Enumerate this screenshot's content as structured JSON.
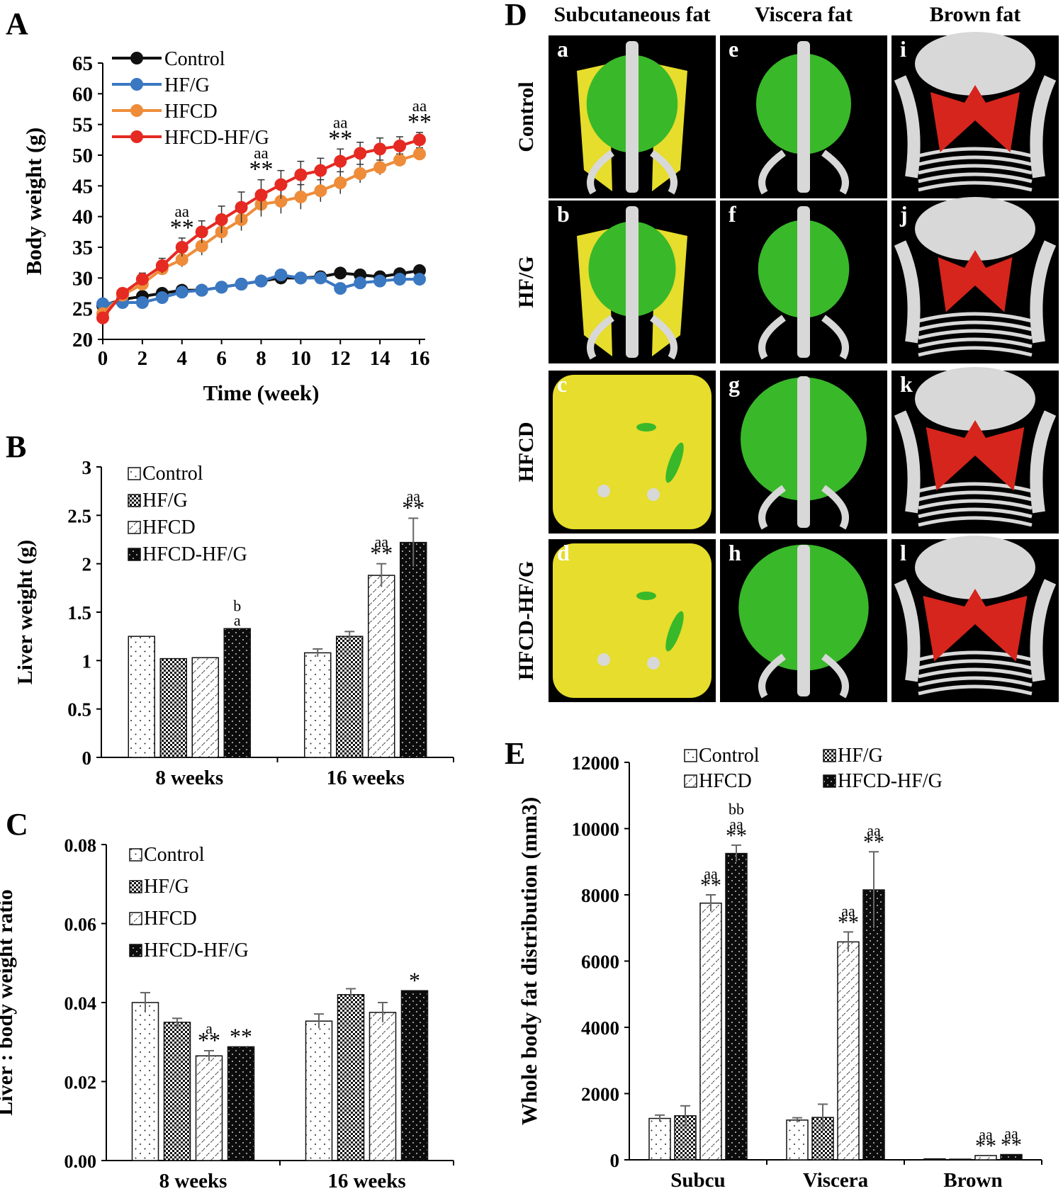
{
  "panels": {
    "A": "A",
    "B": "B",
    "C": "C",
    "D": "D",
    "E": "E"
  },
  "colors": {
    "control": "#111111",
    "hfg": "#3a78c2",
    "hfcd": "#ee8c3a",
    "hfcdhfg": "#e52a22",
    "subcutaneous": "#e6dd2c",
    "viscera": "#39b82a",
    "brown": "#d6251c",
    "bone": "#d8d8d8"
  },
  "chart_data": [
    {
      "id": "A",
      "type": "line",
      "title": "",
      "xlabel": "Time (week)",
      "ylabel": "Body weight (g)",
      "xlim": [
        0,
        16
      ],
      "ylim": [
        20,
        65
      ],
      "xticks": [
        "0",
        "2",
        "4",
        "6",
        "8",
        "10",
        "12",
        "14",
        "16"
      ],
      "yticks": [
        "20",
        "25",
        "30",
        "35",
        "40",
        "45",
        "50",
        "55",
        "60",
        "65"
      ],
      "x": [
        0,
        1,
        2,
        3,
        4,
        5,
        6,
        7,
        8,
        9,
        10,
        11,
        12,
        13,
        14,
        15,
        16
      ],
      "series": [
        {
          "name": "Control",
          "color": "#111111",
          "values": [
            25.5,
            26.5,
            27,
            27.5,
            28,
            28,
            28.5,
            29,
            29.5,
            30,
            30,
            30.2,
            30.8,
            30.5,
            30.2,
            30.7,
            31.2
          ],
          "errors": [
            0.6,
            0.6,
            0.6,
            0.6,
            0.6,
            0.6,
            0.6,
            0.6,
            0.6,
            0.6,
            0.6,
            0.6,
            0.6,
            0.6,
            0.6,
            0.6,
            0.6
          ]
        },
        {
          "name": "HF/G",
          "color": "#3a78c2",
          "values": [
            25.8,
            26,
            26,
            26.8,
            27.7,
            28,
            28.5,
            29,
            29.5,
            30.5,
            30,
            30,
            28.3,
            29.2,
            29.5,
            29.8,
            29.8
          ],
          "errors": [
            0.6,
            0.6,
            0.6,
            0.6,
            0.6,
            0.6,
            0.6,
            0.6,
            0.6,
            0.6,
            0.6,
            0.6,
            0.6,
            0.6,
            0.6,
            0.6,
            0.6
          ]
        },
        {
          "name": "HFCD",
          "color": "#ee8c3a",
          "values": [
            24.2,
            27.2,
            29,
            31.5,
            33,
            35.2,
            37.5,
            39.5,
            42,
            42.5,
            43.2,
            44.2,
            45.5,
            47,
            48,
            49.2,
            50.2
          ],
          "errors": [
            0.8,
            0.8,
            1,
            1,
            1.2,
            1.5,
            1.8,
            1.8,
            2,
            2,
            2,
            1.8,
            1.8,
            1.5,
            1.2,
            1,
            1
          ]
        },
        {
          "name": "HFCD-HF/G",
          "color": "#e52a22",
          "values": [
            23.5,
            27.5,
            29.8,
            32,
            35,
            37.5,
            39.5,
            41.5,
            43.5,
            45.2,
            46.8,
            47.5,
            49,
            50.3,
            51,
            51.5,
            52.5
          ],
          "errors": [
            0.8,
            0.8,
            1,
            1.2,
            1.5,
            1.8,
            2.2,
            2.5,
            2.5,
            2.3,
            2.2,
            2,
            2,
            1.8,
            1.8,
            1.5,
            1.2
          ]
        }
      ],
      "annotations": [
        {
          "x": 4,
          "line1": "aa",
          "line2": "**"
        },
        {
          "x": 8,
          "line1": "aa",
          "line2": "**"
        },
        {
          "x": 12,
          "line1": "aa",
          "line2": "**"
        },
        {
          "x": 16,
          "line1": "aa",
          "line2": "**"
        }
      ],
      "legend": "top-left"
    },
    {
      "id": "B",
      "type": "bar",
      "title": "",
      "xlabel": "",
      "ylabel": "Liver weight (g)",
      "ylim": [
        0,
        3
      ],
      "yticks": [
        "0",
        "0.5",
        "1",
        "1.5",
        "2",
        "2.5",
        "3"
      ],
      "categories": [
        "8 weeks",
        "16 weeks"
      ],
      "series": [
        {
          "name": "Control",
          "pattern": "dots",
          "values": [
            1.25,
            1.08
          ],
          "errors": [
            0,
            0.04
          ]
        },
        {
          "name": "HF/G",
          "pattern": "check",
          "values": [
            1.02,
            1.25
          ],
          "errors": [
            0,
            0.05
          ]
        },
        {
          "name": "HFCD",
          "pattern": "hatch",
          "values": [
            1.03,
            1.88
          ],
          "errors": [
            0,
            0.12
          ]
        },
        {
          "name": "HFCD-HF/G",
          "pattern": "solid",
          "values": [
            1.33,
            2.22
          ],
          "errors": [
            0,
            0.25
          ]
        }
      ],
      "annotations": [
        {
          "group": 0,
          "series": 3,
          "lines": [
            "b",
            "a"
          ]
        },
        {
          "group": 1,
          "series": 2,
          "lines": [
            "aa",
            "**"
          ]
        },
        {
          "group": 1,
          "series": 3,
          "lines": [
            "aa",
            "**"
          ]
        }
      ],
      "legend": "top-left"
    },
    {
      "id": "C",
      "type": "bar",
      "title": "",
      "xlabel": "",
      "ylabel": "Liver : body weight ratio",
      "ylim": [
        0,
        0.08
      ],
      "yticks": [
        "0.00",
        "0.02",
        "0.04",
        "0.06",
        "0.08"
      ],
      "categories": [
        "8 weeks",
        "16 weeks"
      ],
      "series": [
        {
          "name": "Control",
          "pattern": "dots",
          "values": [
            0.04,
            0.0353
          ],
          "errors": [
            0.0025,
            0.0018
          ]
        },
        {
          "name": "HF/G",
          "pattern": "check",
          "values": [
            0.035,
            0.042
          ],
          "errors": [
            0.001,
            0.0015
          ]
        },
        {
          "name": "HFCD",
          "pattern": "hatch",
          "values": [
            0.0265,
            0.0375
          ],
          "errors": [
            0.0013,
            0.0025
          ]
        },
        {
          "name": "HFCD-HF/G",
          "pattern": "solid",
          "values": [
            0.0288,
            0.043
          ],
          "errors": [
            0,
            0
          ]
        }
      ],
      "annotations": [
        {
          "group": 0,
          "series": 2,
          "lines": [
            "a",
            "**"
          ]
        },
        {
          "group": 0,
          "series": 3,
          "lines": [
            "**"
          ]
        },
        {
          "group": 1,
          "series": 3,
          "lines": [
            "*"
          ]
        }
      ],
      "legend": "top-left"
    },
    {
      "id": "E",
      "type": "bar",
      "title": "",
      "xlabel": "",
      "ylabel": "Whole body fat distribution (mm3)",
      "ylim": [
        0,
        12000
      ],
      "yticks": [
        "0",
        "2000",
        "4000",
        "6000",
        "8000",
        "10000",
        "12000"
      ],
      "categories": [
        "Subcu",
        "Viscera",
        "Brown"
      ],
      "series": [
        {
          "name": "Control",
          "pattern": "dots",
          "values": [
            1250,
            1200,
            30
          ],
          "errors": [
            100,
            70,
            0
          ]
        },
        {
          "name": "HF/G",
          "pattern": "check",
          "values": [
            1330,
            1280,
            20
          ],
          "errors": [
            300,
            400,
            0
          ]
        },
        {
          "name": "HFCD",
          "pattern": "hatch",
          "values": [
            7750,
            6580,
            130
          ],
          "errors": [
            250,
            300,
            0
          ]
        },
        {
          "name": "HFCD-HF/G",
          "pattern": "solid",
          "values": [
            9250,
            8150,
            160
          ],
          "errors": [
            250,
            1150,
            0
          ]
        }
      ],
      "annotations": [
        {
          "group": 0,
          "series": 2,
          "lines": [
            "aa",
            "**"
          ]
        },
        {
          "group": 0,
          "series": 3,
          "lines": [
            "bb",
            "aa",
            "**"
          ]
        },
        {
          "group": 1,
          "series": 2,
          "lines": [
            "aa",
            "**"
          ]
        },
        {
          "group": 1,
          "series": 3,
          "lines": [
            "aa",
            "**"
          ]
        },
        {
          "group": 2,
          "series": 2,
          "lines": [
            "aa",
            "**"
          ]
        },
        {
          "group": 2,
          "series": 3,
          "lines": [
            "aa",
            "**"
          ]
        }
      ],
      "legend": "top-two-columns"
    }
  ],
  "panelD": {
    "columns": [
      "Subcutaneous fat",
      "Viscera fat",
      "Brown fat"
    ],
    "rows": [
      "Control",
      "HF/G",
      "HFCD",
      "HFCD-HF/G"
    ],
    "letters": [
      "a",
      "b",
      "c",
      "d",
      "e",
      "f",
      "g",
      "h",
      "i",
      "j",
      "k",
      "l"
    ],
    "fat_level": [
      [
        0.35,
        0.4,
        0.5
      ],
      [
        0.3,
        0.35,
        0.25
      ],
      [
        1.0,
        0.8,
        0.65
      ],
      [
        0.95,
        0.85,
        0.75
      ]
    ]
  }
}
